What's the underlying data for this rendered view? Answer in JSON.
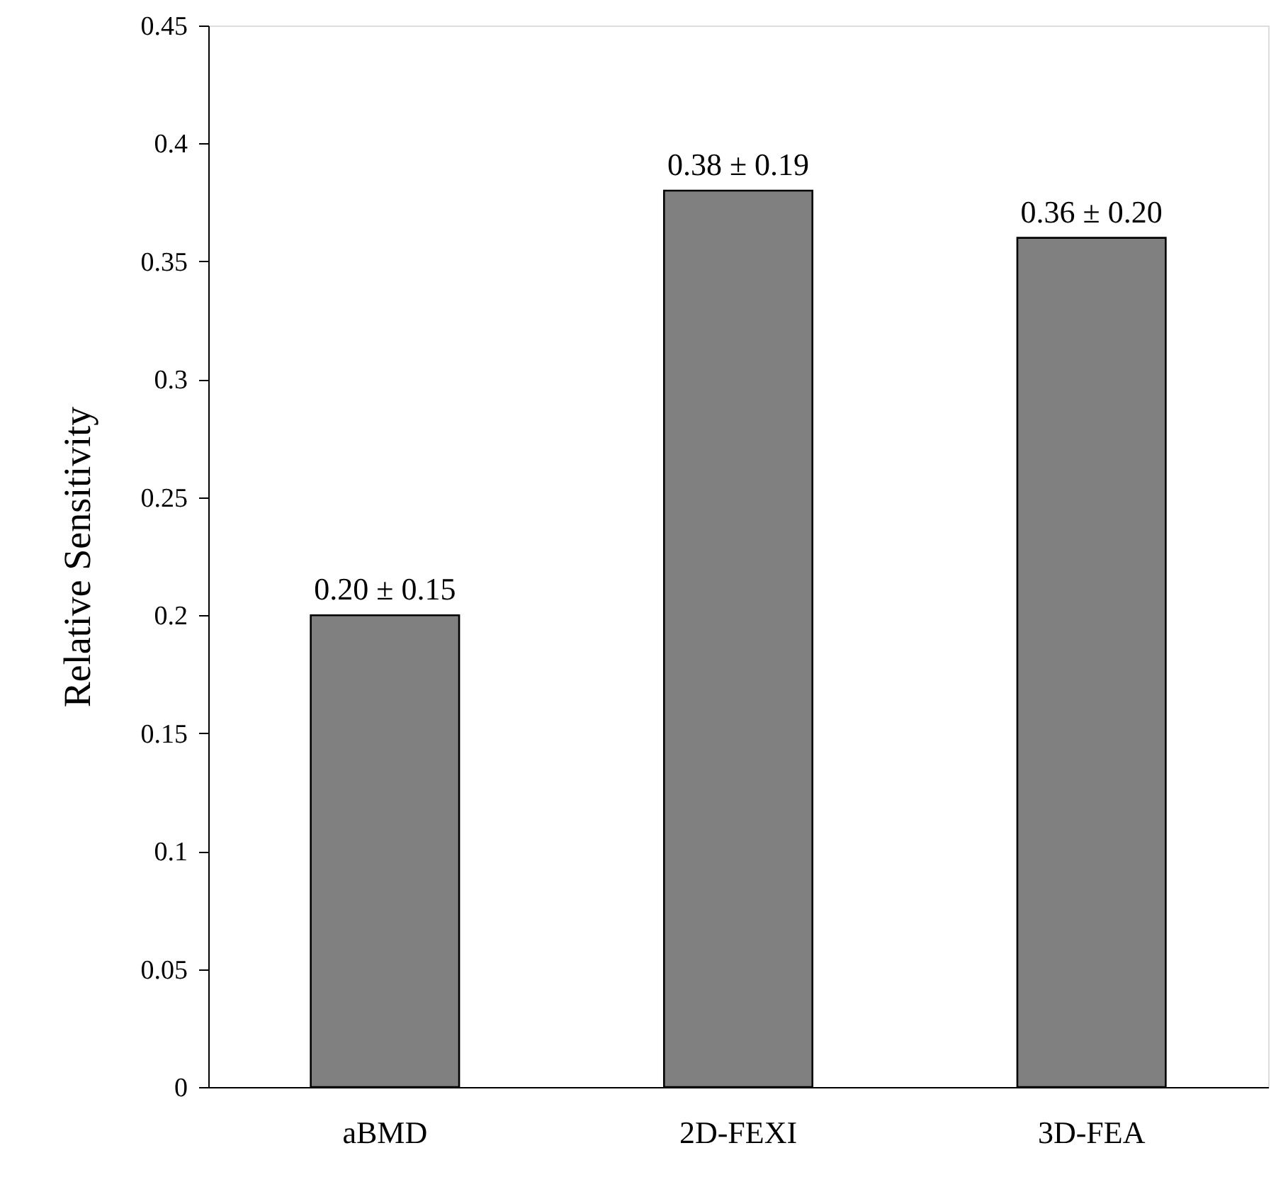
{
  "chart_data": {
    "type": "bar",
    "ylabel": "Relative Sensitivity",
    "categories": [
      "aBMD",
      "2D-FEXI",
      "3D-FEA"
    ],
    "values": [
      0.2,
      0.38,
      0.36
    ],
    "value_labels": [
      "0.20 ± 0.15",
      "0.38 ± 0.19",
      "0.36 ± 0.20"
    ],
    "color": "#808080",
    "ylim": [
      0,
      0.45
    ],
    "yticks": [
      0,
      0.05,
      0.1,
      0.15,
      0.2,
      0.25,
      0.3,
      0.35,
      0.4,
      0.45
    ],
    "grid": false
  }
}
